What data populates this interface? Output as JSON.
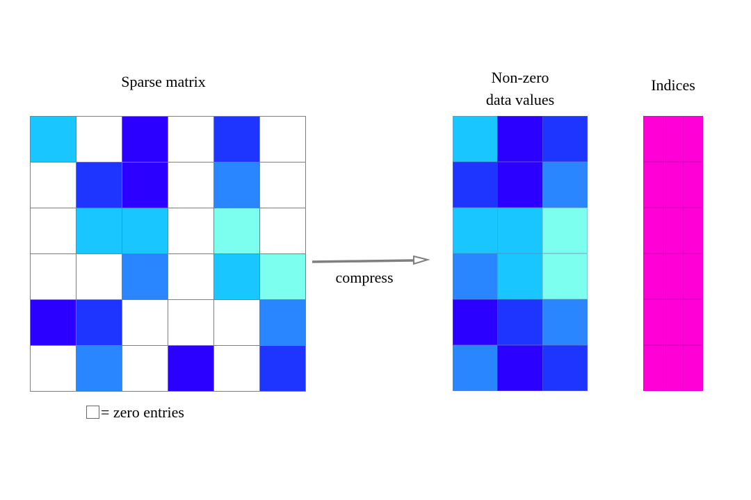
{
  "titles": {
    "matrix": "Sparse matrix",
    "values_line1": "Non-zero",
    "values_line2": "data values",
    "indices": "Indices"
  },
  "arrow_label": "compress",
  "legend": {
    "text": "= zero entries",
    "icon": "empty-square-icon"
  },
  "colors": {
    "zero": "#ffffff",
    "light_cyan": "#7dfff0",
    "cyan": "#1ac6ff",
    "medium_blue": "#2a86ff",
    "blue": "#1e35ff",
    "indigo": "#2c00ff",
    "magenta": "#ff00d6",
    "grid_line": "#7f7f7f",
    "arrow": "#7f7f7f"
  },
  "sparse_matrix": [
    [
      "cyan",
      "zero",
      "indigo",
      "zero",
      "blue",
      "zero"
    ],
    [
      "zero",
      "blue",
      "indigo",
      "zero",
      "medium_blue",
      "zero"
    ],
    [
      "zero",
      "cyan",
      "cyan",
      "zero",
      "light_cyan",
      "zero"
    ],
    [
      "zero",
      "zero",
      "medium_blue",
      "zero",
      "cyan",
      "light_cyan"
    ],
    [
      "indigo",
      "blue",
      "zero",
      "zero",
      "zero",
      "medium_blue"
    ],
    [
      "zero",
      "medium_blue",
      "zero",
      "indigo",
      "zero",
      "blue"
    ]
  ],
  "nonzero_values": [
    [
      "cyan",
      "indigo",
      "blue"
    ],
    [
      "blue",
      "indigo",
      "medium_blue"
    ],
    [
      "cyan",
      "cyan",
      "light_cyan"
    ],
    [
      "medium_blue",
      "cyan",
      "light_cyan"
    ],
    [
      "indigo",
      "blue",
      "medium_blue"
    ],
    [
      "medium_blue",
      "indigo",
      "blue"
    ]
  ],
  "indices": [
    [
      "magenta",
      "magenta",
      "magenta"
    ],
    [
      "magenta",
      "magenta",
      "magenta"
    ],
    [
      "magenta",
      "magenta",
      "magenta"
    ],
    [
      "magenta",
      "magenta",
      "magenta"
    ],
    [
      "magenta",
      "magenta",
      "magenta"
    ],
    [
      "magenta",
      "magenta",
      "magenta"
    ]
  ]
}
